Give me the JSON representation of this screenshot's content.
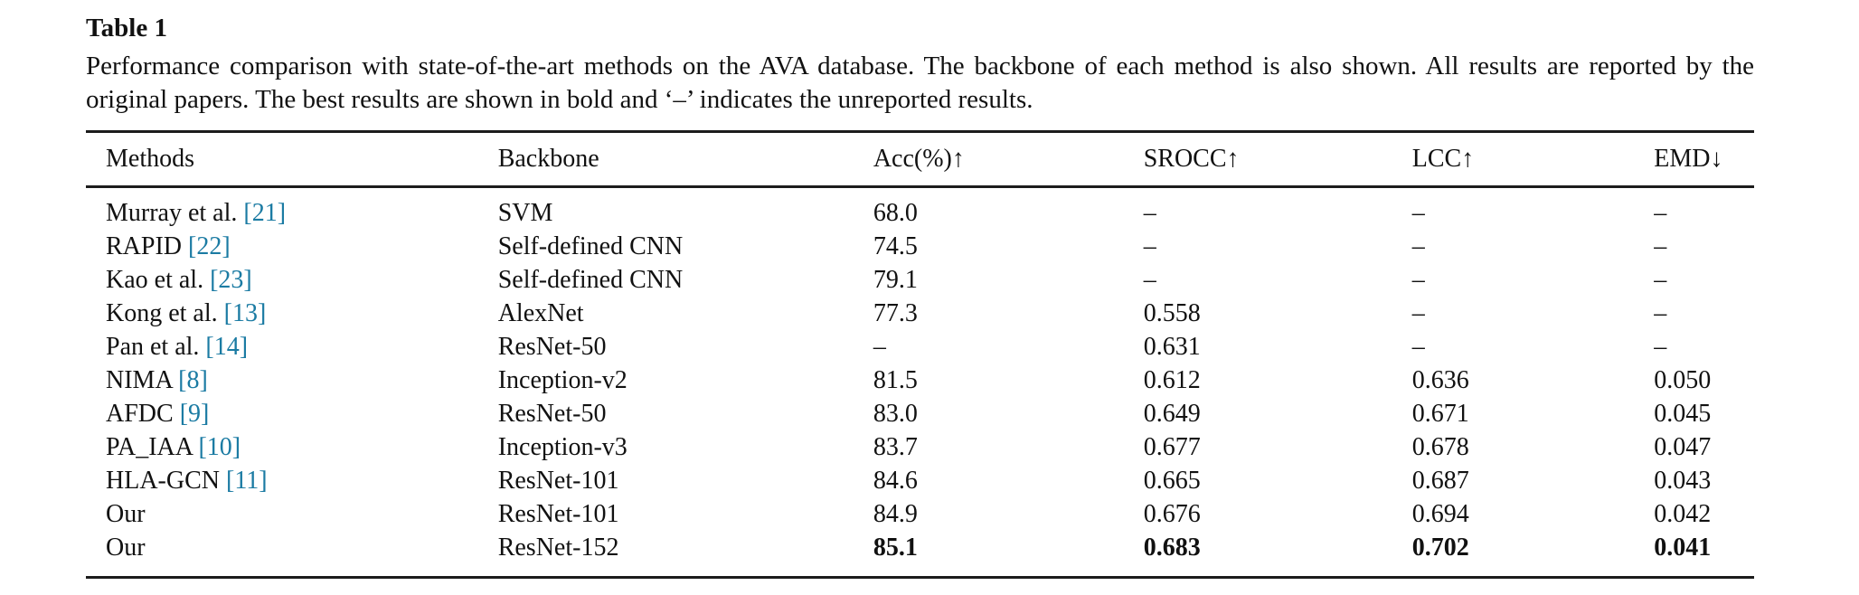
{
  "page": {
    "label": "Table 1",
    "caption": "Performance comparison with state-of-the-art methods on the AVA database. The backbone of each method is also shown. All results are reported by the original papers. The best results are shown in bold and ‘–’ indicates the unreported results."
  },
  "colors": {
    "citation_link": "#1b7ba3",
    "text": "#111111",
    "rule": "#1c1c1c"
  },
  "table": {
    "columns": [
      "Methods",
      "Backbone",
      "Acc(%)↑",
      "SROCC↑",
      "LCC↑",
      "EMD↓"
    ],
    "rows": [
      {
        "method": "Murray et al.",
        "citation": "[21]",
        "backbone": "SVM",
        "acc": "68.0",
        "srocc": "–",
        "lcc": "–",
        "emd": "–",
        "best": false
      },
      {
        "method": "RAPID",
        "citation": "[22]",
        "backbone": "Self-defined CNN",
        "acc": "74.5",
        "srocc": "–",
        "lcc": "–",
        "emd": "–",
        "best": false
      },
      {
        "method": "Kao et al.",
        "citation": "[23]",
        "backbone": "Self-defined CNN",
        "acc": "79.1",
        "srocc": "–",
        "lcc": "–",
        "emd": "–",
        "best": false
      },
      {
        "method": "Kong et al.",
        "citation": "[13]",
        "backbone": "AlexNet",
        "acc": "77.3",
        "srocc": "0.558",
        "lcc": "–",
        "emd": "–",
        "best": false
      },
      {
        "method": "Pan et al.",
        "citation": "[14]",
        "backbone": "ResNet-50",
        "acc": "–",
        "srocc": "0.631",
        "lcc": "–",
        "emd": "–",
        "best": false
      },
      {
        "method": "NIMA",
        "citation": "[8]",
        "backbone": "Inception-v2",
        "acc": "81.5",
        "srocc": "0.612",
        "lcc": "0.636",
        "emd": "0.050",
        "best": false
      },
      {
        "method": "AFDC",
        "citation": "[9]",
        "backbone": "ResNet-50",
        "acc": "83.0",
        "srocc": "0.649",
        "lcc": "0.671",
        "emd": "0.045",
        "best": false
      },
      {
        "method": "PA_IAA",
        "citation": "[10]",
        "backbone": "Inception-v3",
        "acc": "83.7",
        "srocc": "0.677",
        "lcc": "0.678",
        "emd": "0.047",
        "best": false
      },
      {
        "method": "HLA-GCN",
        "citation": "[11]",
        "backbone": "ResNet-101",
        "acc": "84.6",
        "srocc": "0.665",
        "lcc": "0.687",
        "emd": "0.043",
        "best": false
      },
      {
        "method": "Our",
        "citation": "",
        "backbone": "ResNet-101",
        "acc": "84.9",
        "srocc": "0.676",
        "lcc": "0.694",
        "emd": "0.042",
        "best": false
      },
      {
        "method": "Our",
        "citation": "",
        "backbone": "ResNet-152",
        "acc": "85.1",
        "srocc": "0.683",
        "lcc": "0.702",
        "emd": "0.041",
        "best": true
      }
    ]
  }
}
